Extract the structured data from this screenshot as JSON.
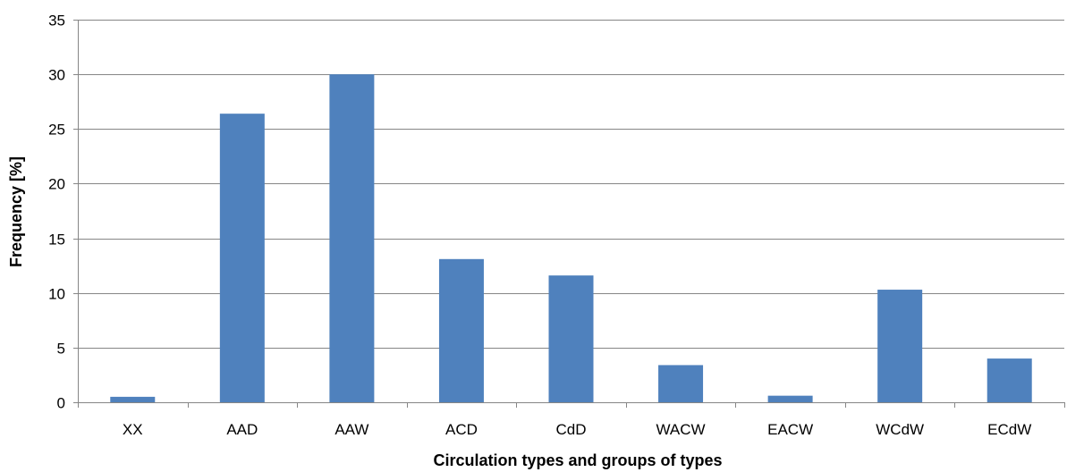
{
  "chart_data": {
    "type": "bar",
    "title": "",
    "xlabel": "Circulation types and groups of types",
    "ylabel": "Frequency [%]",
    "categories": [
      "XX",
      "AAD",
      "AAW",
      "ACD",
      "CdD",
      "WACW",
      "EACW",
      "WCdW",
      "ECdW"
    ],
    "values": [
      0.5,
      26.4,
      30.0,
      13.1,
      11.6,
      3.4,
      0.6,
      10.3,
      4.0
    ],
    "ylim": [
      0,
      35
    ],
    "yticks": [
      "0",
      "5",
      "10",
      "15",
      "20",
      "25",
      "30",
      "35"
    ],
    "grid": true,
    "legend": "none",
    "colors": {
      "bar": "#4F81BD",
      "grid": "#868686",
      "axis": "#868686"
    }
  }
}
